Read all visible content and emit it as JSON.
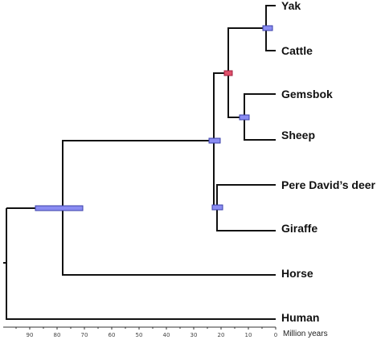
{
  "taxa": {
    "yak": "Yak",
    "cattle": "Cattle",
    "gemsbok": "Gemsbok",
    "sheep": "Sheep",
    "pere_david": "Pere David’s deer",
    "giraffe": "Giraffe",
    "horse": "Horse",
    "human": "Human"
  },
  "axis": {
    "label": "Million years",
    "ticks": [
      "90",
      "80",
      "70",
      "60",
      "50",
      "40",
      "30",
      "20",
      "10",
      "0"
    ],
    "range_myr": [
      95,
      0
    ]
  },
  "colors": {
    "branch": "#111111",
    "hpd_bar": "#8a8cf2",
    "hpd_bar_calibrated": "#e0506a"
  }
}
